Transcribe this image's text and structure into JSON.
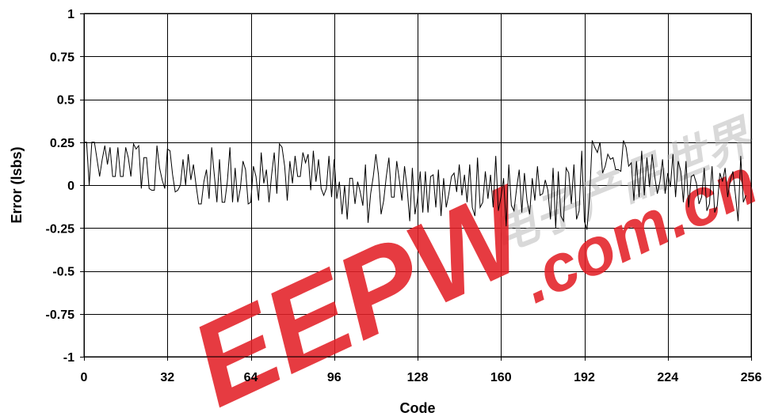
{
  "watermark": {
    "brand": "EEPW",
    "domain": ".com.cn",
    "chinese": "电子产品世界",
    "color": "#e32027",
    "chinese_color": "#bbbbbb"
  },
  "chart_data": {
    "type": "line",
    "title": "",
    "xlabel": "Code",
    "ylabel": "Error (lsbs)",
    "xlim": [
      0,
      256
    ],
    "ylim": [
      -1,
      1
    ],
    "x_ticks": [
      0,
      32,
      64,
      96,
      128,
      160,
      192,
      224,
      256
    ],
    "x_tick_labels": [
      "0",
      "32",
      "64",
      "96",
      "128",
      "160",
      "192",
      "224",
      "256"
    ],
    "y_ticks": [
      1,
      0.75,
      0.5,
      0.25,
      0,
      -0.25,
      -0.5,
      -0.75,
      -1
    ],
    "y_tick_labels": [
      "1",
      "0.75",
      "0.5",
      "0.25",
      "0",
      "-0.25",
      "-0.5",
      "-0.75",
      "-1"
    ],
    "grid": true,
    "legend": "none",
    "line_color": "#000000",
    "series": [
      {
        "x_start": 0,
        "x_step": 1,
        "values": [
          0.25,
          0.25,
          0.0,
          0.25,
          0.25,
          0.15,
          0.05,
          0.15,
          0.23,
          0.12,
          0.22,
          0.05,
          0.05,
          0.22,
          0.05,
          0.05,
          0.22,
          0.16,
          0.05,
          0.24,
          0.21,
          0.23,
          -0.02,
          0.16,
          0.16,
          -0.02,
          -0.03,
          -0.03,
          0.23,
          0.1,
          0.03,
          -0.02,
          0.21,
          0.2,
          0.06,
          -0.04,
          -0.03,
          0.0,
          0.15,
          0.0,
          0.18,
          0.03,
          0.12,
          0.0,
          -0.11,
          -0.11,
          0.02,
          0.09,
          -0.08,
          0.22,
          0.06,
          -0.1,
          0.15,
          -0.1,
          -0.1,
          0.02,
          0.22,
          -0.1,
          0.1,
          -0.1,
          -0.02,
          0.14,
          0.09,
          -0.11,
          -0.1,
          0.11,
          0.05,
          -0.09,
          0.19,
          0.01,
          0.09,
          -0.1,
          0.06,
          0.19,
          -0.05,
          0.24,
          0.22,
          0.11,
          -0.09,
          0.14,
          0.01,
          0.17,
          0.05,
          0.05,
          0.19,
          0.13,
          0.18,
          -0.03,
          0.2,
          0.02,
          0.15,
          -0.02,
          -0.06,
          -0.02,
          0.17,
          -0.07,
          0.15,
          -0.08,
          0.02,
          -0.17,
          0.0,
          -0.2,
          0.04,
          0.04,
          -0.11,
          0.02,
          -0.04,
          -0.12,
          0.12,
          -0.22,
          -0.05,
          0.05,
          0.18,
          0.06,
          -0.17,
          -0.09,
          0.05,
          0.16,
          -0.07,
          -0.07,
          0.14,
          0.03,
          -0.09,
          0.11,
          -0.02,
          -0.21,
          0.1,
          -0.17,
          -0.08,
          0.08,
          -0.16,
          0.08,
          -0.16,
          0.05,
          0.06,
          -0.13,
          0.09,
          -0.18,
          0.04,
          -0.13,
          -0.05,
          0.05,
          0.07,
          -0.04,
          0.12,
          -0.06,
          0.06,
          -0.1,
          0.12,
          -0.13,
          -0.18,
          0.16,
          -0.13,
          -0.1,
          0.08,
          -0.08,
          0.06,
          -0.13,
          0.17,
          -0.15,
          -0.07,
          0.04,
          -0.24,
          0.12,
          -0.12,
          -0.15,
          -0.02,
          0.09,
          -0.16,
          0.07,
          -0.09,
          -0.17,
          0.04,
          -0.09,
          0.11,
          -0.06,
          -0.05,
          0.03,
          -0.03,
          -0.2,
          0.1,
          -0.25,
          0.08,
          -0.18,
          -0.21,
          0.1,
          0.07,
          -0.11,
          0.12,
          -0.2,
          -0.15,
          0.2,
          -0.21,
          -0.26,
          -0.07,
          0.26,
          0.22,
          0.19,
          0.25,
          0.07,
          0.11,
          0.18,
          0.15,
          0.16,
          0.09,
          0.09,
          0.08,
          0.26,
          0.22,
          0.11,
          0.13,
          -0.09,
          0.14,
          -0.07,
          0.2,
          -0.06,
          0.16,
          -0.01,
          0.18,
          0.05,
          -0.05,
          0.02,
          0.15,
          -0.05,
          0.07,
          -0.01,
          0.18,
          -0.07,
          0.14,
          0.08,
          -0.1,
          0.14,
          -0.13,
          0.05,
          0.06,
          0.01,
          -0.11,
          -0.07,
          0.1,
          -0.15,
          -0.11,
          0.11,
          -0.16,
          -0.12,
          0.07,
          0.02,
          0.1,
          -0.07,
          0.03,
          0.08,
          -0.06,
          -0.21,
          0.17,
          -0.1,
          -0.06
        ]
      }
    ]
  }
}
